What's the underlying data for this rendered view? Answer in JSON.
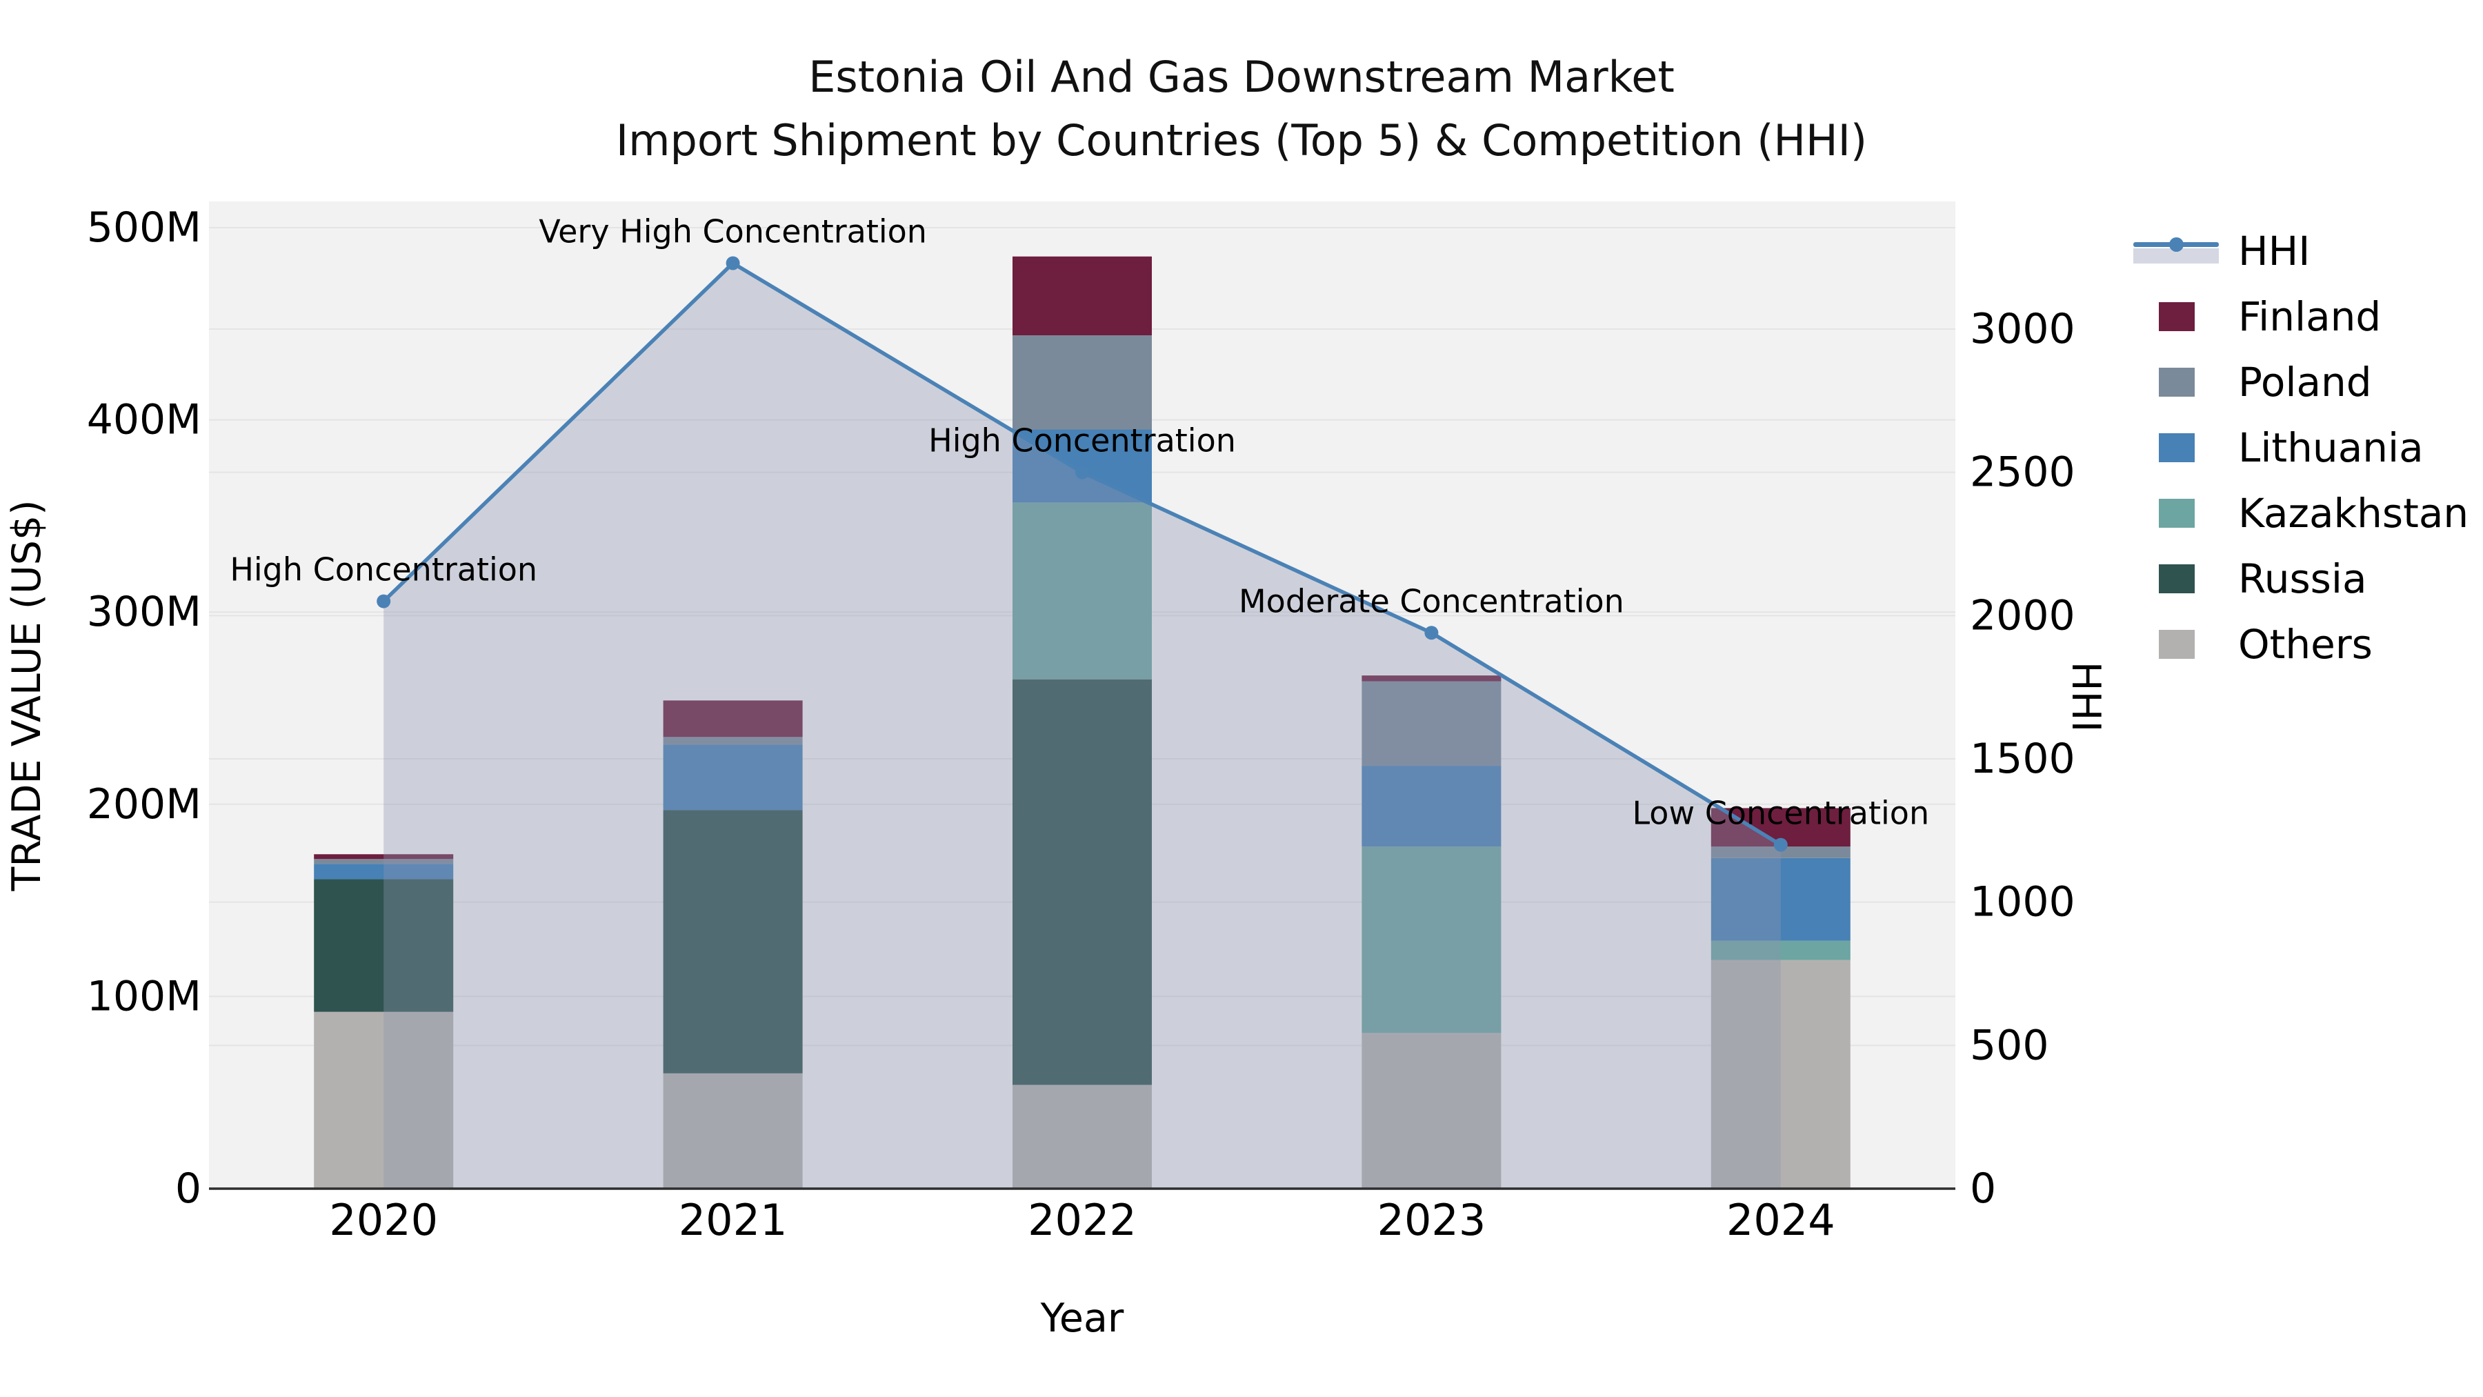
{
  "title": {
    "line1": "Estonia Oil And Gas Downstream Market",
    "line2": "Import Shipment by Countries (Top 5) & Competition (HHI)"
  },
  "chart_data": {
    "type": "bar",
    "subtype": "stacked-bars-with-line-overlay",
    "categories": [
      "2020",
      "2021",
      "2022",
      "2023",
      "2024"
    ],
    "series": [
      {
        "name": "Finland",
        "values": [
          2.5,
          19,
          41,
          3,
          20
        ]
      },
      {
        "name": "Poland",
        "values": [
          2.5,
          4,
          49,
          44,
          6
        ]
      },
      {
        "name": "Lithuania",
        "values": [
          8,
          34,
          38,
          42,
          43
        ]
      },
      {
        "name": "Kazakhstan",
        "values": [
          0,
          0,
          92,
          97,
          10
        ]
      },
      {
        "name": "Russia",
        "values": [
          69,
          137,
          211,
          0,
          0
        ]
      },
      {
        "name": "Others",
        "values": [
          92,
          60,
          54,
          81,
          119
        ]
      }
    ],
    "stack_order_bottom_to_top": [
      "Others",
      "Russia",
      "Kazakhstan",
      "Lithuania",
      "Poland",
      "Finland"
    ],
    "bar_totals_musd": [
      174,
      254,
      485,
      267,
      198
    ],
    "line_series": {
      "name": "HHI",
      "axis": "right",
      "values": [
        2050,
        3230,
        2500,
        1940,
        1200
      ],
      "has_area_fill": true,
      "has_markers": true
    },
    "annotations": [
      "High Concentration",
      "Very High Concentration",
      "High Concentration",
      "Moderate Concentration",
      "Low Concentration"
    ],
    "xlabel": "Year",
    "left_axis": {
      "label": "TRADE VALUE (US$)",
      "tick_labels": [
        "0",
        "100M",
        "200M",
        "300M",
        "400M",
        "500M"
      ],
      "tick_values_musd": [
        0,
        100,
        200,
        300,
        400,
        500
      ],
      "range_musd": [
        0,
        513
      ]
    },
    "right_axis": {
      "label": "HHI",
      "tick_labels": [
        "0",
        "500",
        "1000",
        "1500",
        "2000",
        "2500",
        "3000"
      ],
      "tick_values": [
        0,
        500,
        1000,
        1500,
        2000,
        2500,
        3000
      ],
      "range": [
        0,
        3440
      ]
    },
    "legend": [
      {
        "key": "line",
        "label": "HHI"
      },
      {
        "key": "patch",
        "label": "Finland"
      },
      {
        "key": "patch",
        "label": "Poland"
      },
      {
        "key": "patch",
        "label": "Lithuania"
      },
      {
        "key": "patch",
        "label": "Kazakhstan"
      },
      {
        "key": "patch",
        "label": "Russia"
      },
      {
        "key": "patch",
        "label": "Others"
      }
    ],
    "grid": "both-axes-horizontal",
    "legend_position": "outside-right-top",
    "colors": {
      "Finland": "#6e1e3f",
      "Poland": "#7b8a9a",
      "Lithuania": "#4781b5",
      "Kazakhstan": "#6ca5a1",
      "Russia": "#2f534f",
      "Others": "#b3b1af",
      "hhi_line": "#4b82b6",
      "hhi_area": "rgba(140,150,177,0.37)",
      "plot_bg": "#f2f2f2",
      "grid": "#e4e4e6",
      "axis_line": "#2e2e2e",
      "text": "#000000"
    }
  }
}
